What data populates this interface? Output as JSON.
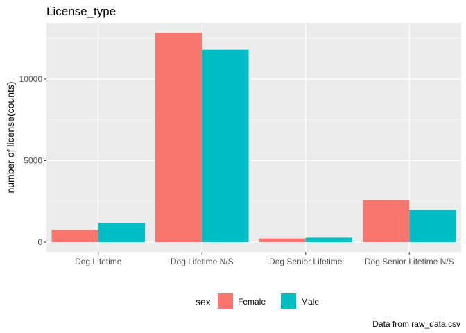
{
  "chart_data": {
    "type": "bar",
    "title": "License_type",
    "ylabel": "number of license(counts)",
    "xlabel": "",
    "categories": [
      "Dog Lifetime",
      "Dog Lifetime N/S",
      "Dog Senior Lifetime",
      "Dog Senior Lifetime N/S"
    ],
    "series": [
      {
        "name": "Female",
        "color": "#F8766D",
        "values": [
          750,
          12850,
          230,
          2570
        ]
      },
      {
        "name": "Male",
        "color": "#00BFC4",
        "values": [
          1180,
          11800,
          280,
          1980
        ]
      }
    ],
    "ylim": [
      0,
      13500
    ],
    "yticks": [
      0,
      5000,
      10000
    ],
    "ytick_labels": [
      "0",
      "5000",
      "10000"
    ],
    "legend": {
      "title": "sex",
      "placement": "bottom"
    },
    "caption": "Data from raw_data.csv",
    "panel_background": "#EBEBEB",
    "grid": true
  }
}
